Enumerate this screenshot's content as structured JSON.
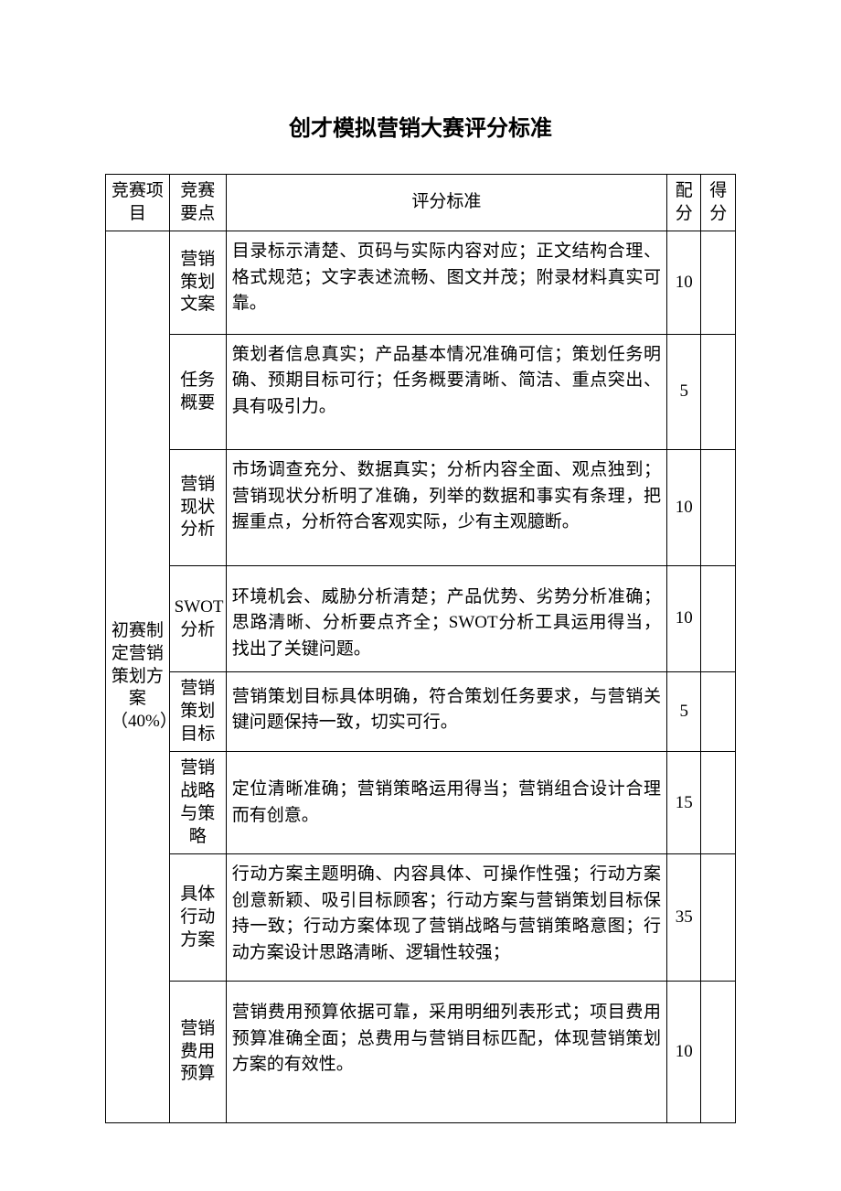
{
  "title": "创才模拟营销大赛评分标准",
  "headers": {
    "project": "竞赛项目",
    "aspect": "竞赛要点",
    "criteria": "评分标准",
    "points": "配分",
    "score": "得分"
  },
  "section": {
    "project_name": "初赛制定营销策划方案（40%）",
    "rows": [
      {
        "aspect": "营销策划文案",
        "criteria": "目录标示清楚、页码与实际内容对应；正文结构合理、格式规范；文字表述流畅、图文并茂；附录材料真实可靠。",
        "points": "10"
      },
      {
        "aspect": "任务概要",
        "criteria": "策划者信息真实；产品基本情况准确可信；策划任务明确、预期目标可行；任务概要清晰、简洁、重点突出、具有吸引力。",
        "points": "5"
      },
      {
        "aspect": "营销现状分析",
        "criteria": "市场调查充分、数据真实；分析内容全面、观点独到；营销现状分析明了准确，列举的数据和事实有条理，把握重点，分析符合客观实际，少有主观臆断。",
        "points": "10"
      },
      {
        "aspect": "SWOT分析",
        "criteria": "环境机会、威胁分析清楚；产品优势、劣势分析准确；思路清晰、分析要点齐全；SWOT分析工具运用得当，找出了关键问题。",
        "points": "10"
      },
      {
        "aspect": "营销策划目标",
        "criteria": "营销策划目标具体明确，符合策划任务要求，与营销关键问题保持一致，切实可行。",
        "points": "5"
      },
      {
        "aspect": "营销战略与策略",
        "criteria": "定位清晰准确；营销策略运用得当；营销组合设计合理而有创意。",
        "points": "15"
      },
      {
        "aspect": "具体行动方案",
        "criteria": "行动方案主题明确、内容具体、可操作性强；行动方案创意新颖、吸引目标顾客；行动方案与营销策划目标保持一致；行动方案体现了营销战略与营销策略意图；行动方案设计思路清晰、逻辑性较强；",
        "points": "35"
      },
      {
        "aspect": "营销费用预算",
        "criteria": "营销费用预算依据可靠，采用明细列表形式；项目费用预算准确全面；总费用与营销目标匹配，体现营销策划方案的有效性。",
        "points": "10"
      }
    ]
  },
  "styling": {
    "page_bg": "#ffffff",
    "text_color": "#000000",
    "border_color": "#000000",
    "title_fontsize": 24,
    "cell_fontsize": 19,
    "title_font_family": "SimHei",
    "body_font_family": "SimSun"
  }
}
